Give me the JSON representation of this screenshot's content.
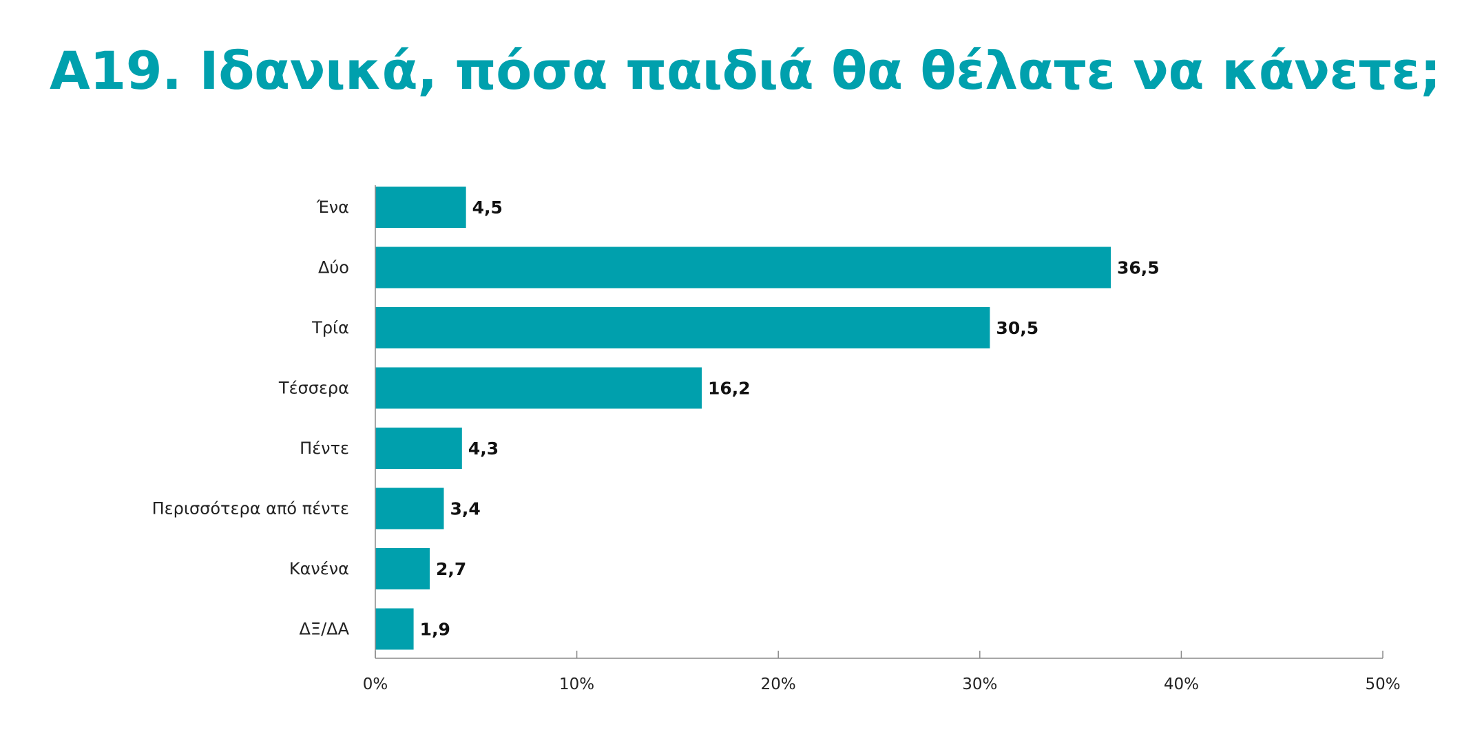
{
  "chart_data": {
    "type": "bar",
    "orientation": "horizontal",
    "title": "Α19. Ιδανικά, πόσα παιδιά θα θέλατε να κάνετε;",
    "categories": [
      "Ένα",
      "Δύο",
      "Τρία",
      "Τέσσερα",
      "Πέντε",
      "Περισσότερα από πέντε",
      "Κανένα",
      "ΔΞ/ΔΑ"
    ],
    "values": [
      4.5,
      36.5,
      30.5,
      16.2,
      4.3,
      3.4,
      2.7,
      1.9
    ],
    "value_labels": [
      "4,5",
      "36,5",
      "30,5",
      "16,2",
      "4,3",
      "3,4",
      "2,7",
      "1,9"
    ],
    "xlim": [
      0,
      50
    ],
    "ticks": [
      0,
      10,
      20,
      30,
      40,
      50
    ],
    "tick_labels": [
      "0%",
      "10%",
      "20%",
      "30%",
      "40%",
      "50%"
    ],
    "xlabel": "",
    "ylabel": "",
    "grid": false,
    "legend": "none",
    "bar_color": "#00a0ad",
    "title_color": "#00a0ad"
  }
}
